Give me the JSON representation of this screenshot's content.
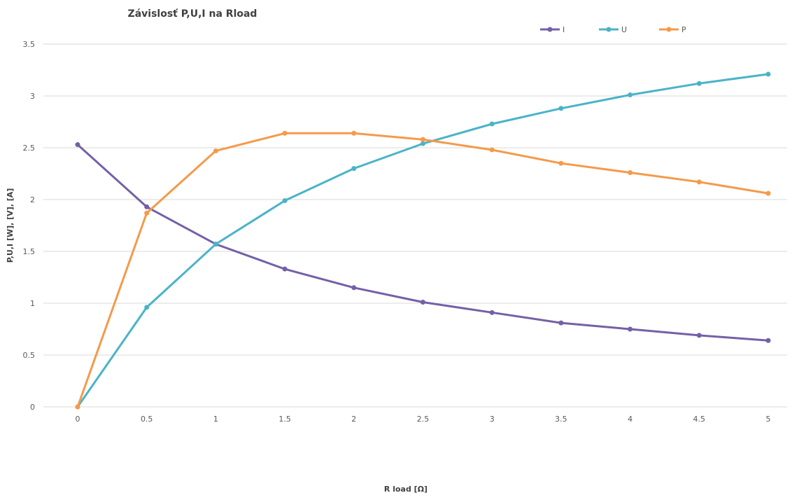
{
  "chart_data": {
    "type": "line",
    "title": "Závislosť P,U,I na Rload",
    "xlabel": "R load [Ω]",
    "ylabel": "P,U,I [W], [V], [A]",
    "categories": [
      "0",
      "0.5",
      "1",
      "1.5",
      "2",
      "2.5",
      "3",
      "3.5",
      "4",
      "4.5",
      "5"
    ],
    "x": [
      0,
      0.5,
      1,
      1.5,
      2,
      2.5,
      3,
      3.5,
      4,
      4.5,
      5
    ],
    "yticks": [
      "0",
      "0.5",
      "1",
      "1.5",
      "2",
      "2.5",
      "3",
      "3.5"
    ],
    "ylim": [
      0,
      3.5
    ],
    "grid": true,
    "legend_position": "top-right",
    "series": [
      {
        "name": "I",
        "color": "#7460a6",
        "values": [
          2.53,
          1.93,
          1.57,
          1.33,
          1.15,
          1.01,
          0.91,
          0.81,
          0.75,
          0.69,
          0.64
        ]
      },
      {
        "name": "U",
        "color": "#4ab3c8",
        "values": [
          0,
          0.96,
          1.57,
          1.99,
          2.3,
          2.54,
          2.73,
          2.88,
          3.01,
          3.12,
          3.21
        ]
      },
      {
        "name": "P",
        "color": "#f59a4a",
        "values": [
          0,
          1.87,
          2.47,
          2.64,
          2.64,
          2.58,
          2.48,
          2.35,
          2.26,
          2.17,
          2.06
        ]
      }
    ]
  }
}
